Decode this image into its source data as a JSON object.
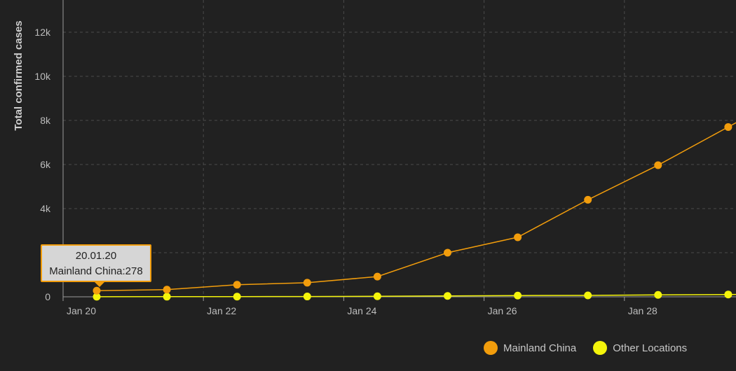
{
  "chart_data": {
    "type": "line",
    "ylabel": "Total confirmed cases",
    "y_ticks": [
      0,
      2000,
      4000,
      6000,
      8000,
      10000,
      12000
    ],
    "y_tick_labels": [
      "0",
      "2k",
      "4k",
      "6k",
      "8k",
      "10k",
      "12k"
    ],
    "ylim": [
      0,
      12500
    ],
    "x_ticks": [
      "Jan 20",
      "Jan 22",
      "Jan 24",
      "Jan 26",
      "Jan 28"
    ],
    "x": [
      "20.01.20",
      "21.01.20",
      "22.01.20",
      "23.01.20",
      "24.01.20",
      "25.01.20",
      "26.01.20",
      "27.01.20",
      "28.01.20",
      "29.01.20"
    ],
    "series": [
      {
        "name": "Mainland China",
        "color": "#f29d0c",
        "values": [
          278,
          326,
          547,
          639,
          916,
          2000,
          2700,
          4400,
          5970,
          7700
        ]
      },
      {
        "name": "Other Locations",
        "color": "#f4f40b",
        "values": [
          4,
          6,
          8,
          14,
          25,
          40,
          57,
          64,
          87,
          105
        ]
      }
    ],
    "grid": true,
    "legend_position": "bottom-right"
  },
  "tooltip": {
    "date": "20.01.20",
    "text": "Mainland China:278"
  }
}
